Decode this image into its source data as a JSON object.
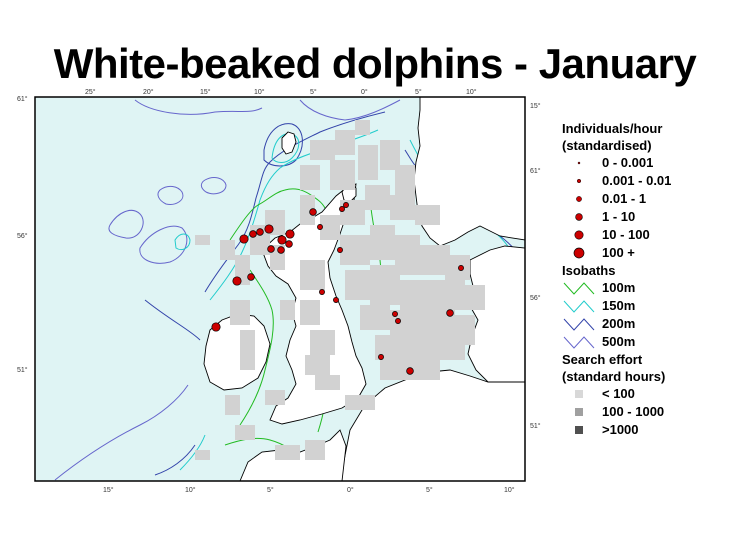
{
  "title": "White-beaked dolphins - January",
  "map": {
    "top_ticks": [
      "25°",
      "20°",
      "15°",
      "10°",
      "5°",
      "0°",
      "5°",
      "10°"
    ],
    "bottom_ticks": [
      "15°",
      "10°",
      "5°",
      "0°",
      "5°",
      "10°"
    ],
    "left_ticks": [
      "61°",
      "56°",
      "51°"
    ],
    "right_ticks": [
      "15°",
      "61°",
      "56°",
      "51°"
    ],
    "colors": {
      "sea": "#dff4f4",
      "land": "#ffffff",
      "effort": "#d2d2d2",
      "sightings": "#cc0000"
    },
    "sighting_classes": [
      "0 - 0.001",
      "0.001 - 0.01",
      "0.01 - 1",
      "1 - 10",
      "10 - 100",
      "100 +"
    ]
  },
  "legend": {
    "individuals_title": "Individuals/hour",
    "individuals_subtitle": "(standardised)",
    "individuals": [
      {
        "label": "0 - 0.001"
      },
      {
        "label": "0.001 - 0.01"
      },
      {
        "label": "0.01 - 1"
      },
      {
        "label": "1 - 10"
      },
      {
        "label": "10 - 100"
      },
      {
        "label": "100 +"
      }
    ],
    "isobaths_title": "Isobaths",
    "isobaths": [
      {
        "label": "100m",
        "color": "#22bb22"
      },
      {
        "label": "150m",
        "color": "#22cccc"
      },
      {
        "label": "200m",
        "color": "#3344aa"
      },
      {
        "label": "500m",
        "color": "#6666cc"
      }
    ],
    "effort_title": "Search effort",
    "effort_subtitle": "(standard hours)",
    "effort": [
      {
        "label": "< 100",
        "color": "#d8d8d8"
      },
      {
        "label": "100 - 1000",
        "color": "#a0a0a0"
      },
      {
        "label": ">1000",
        "color": "#505050"
      }
    ]
  }
}
